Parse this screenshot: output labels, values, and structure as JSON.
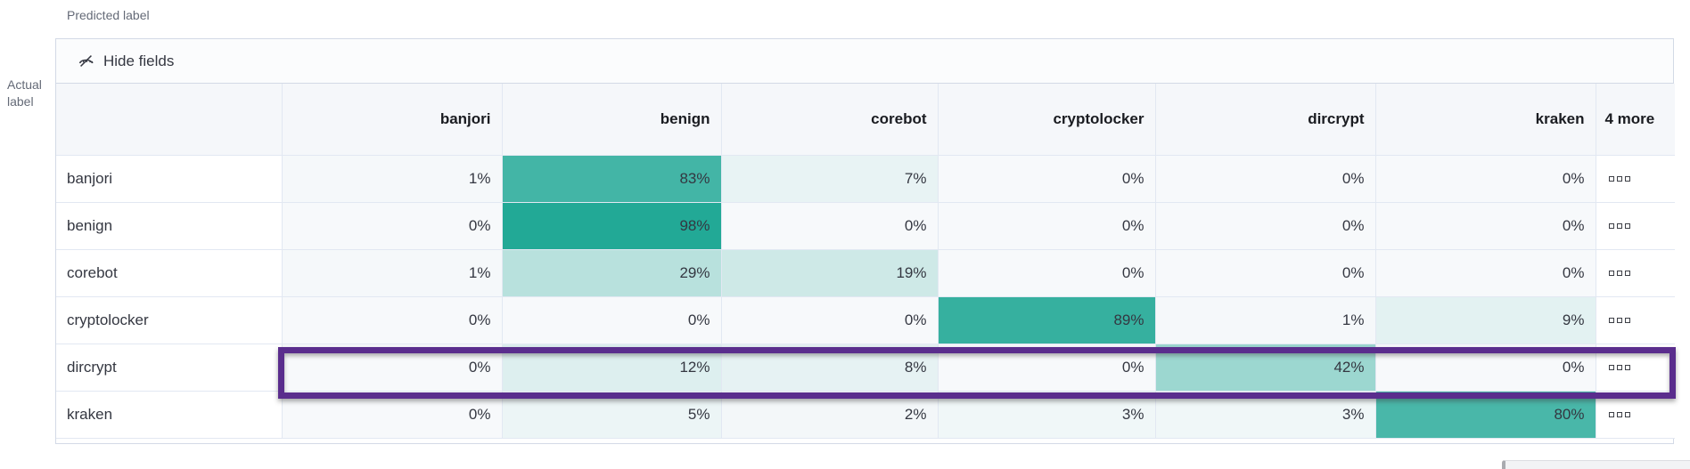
{
  "axis": {
    "predicted": "Predicted label",
    "actual_line1": "Actual",
    "actual_line2": "label"
  },
  "toolbar": {
    "hide_fields": "Hide fields"
  },
  "icons": {
    "hide_fields": "eye-closed-icon",
    "cell_actions": "boxes-horizontal-icon"
  },
  "colors": {
    "heat_low": "#F7F9FB",
    "heat_high": "#1EA794",
    "panel_border": "#D3DAE6",
    "header_bg": "#F5F7FA",
    "highlight_border": "#5A2D8D",
    "text": "#343741"
  },
  "highlight": {
    "row": "dircrypt"
  },
  "chart_data": {
    "type": "heatmap",
    "xlabel": "Predicted label",
    "ylabel": "Actual label",
    "columns": [
      "banjori",
      "benign",
      "corebot",
      "cryptolocker",
      "dircrypt",
      "kraken"
    ],
    "hidden_columns_label": "4 more",
    "rows": [
      "banjori",
      "benign",
      "corebot",
      "cryptolocker",
      "dircrypt",
      "kraken"
    ],
    "values_pct": [
      [
        1,
        83,
        7,
        0,
        0,
        0
      ],
      [
        0,
        98,
        0,
        0,
        0,
        0
      ],
      [
        1,
        29,
        19,
        0,
        0,
        0
      ],
      [
        0,
        0,
        0,
        89,
        1,
        9
      ],
      [
        0,
        12,
        8,
        0,
        42,
        0
      ],
      [
        0,
        5,
        2,
        3,
        3,
        80
      ]
    ],
    "value_suffix": "%",
    "legend": "off"
  }
}
